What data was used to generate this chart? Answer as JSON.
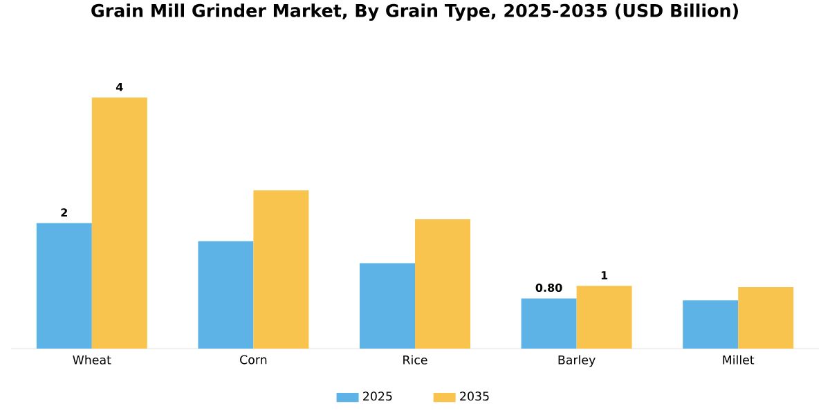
{
  "chart_data": {
    "type": "bar",
    "title": "Grain Mill Grinder Market, By Grain Type, 2025-2035 (USD Billion)",
    "legend": "bottom",
    "categories": [
      "Wheat",
      "Corn",
      "Rice",
      "Barley",
      "Millet"
    ],
    "series": [
      {
        "name": "2025",
        "color": "#5db3e6",
        "values": [
          2,
          1.71,
          1.36,
          0.8,
          0.77
        ],
        "value_labels": [
          "2",
          null,
          null,
          "0.80",
          null
        ]
      },
      {
        "name": "2035",
        "color": "#f9c44d",
        "values": [
          4,
          2.52,
          2.06,
          1,
          0.98
        ],
        "value_labels": [
          "4",
          null,
          null,
          "1",
          null
        ]
      }
    ]
  }
}
